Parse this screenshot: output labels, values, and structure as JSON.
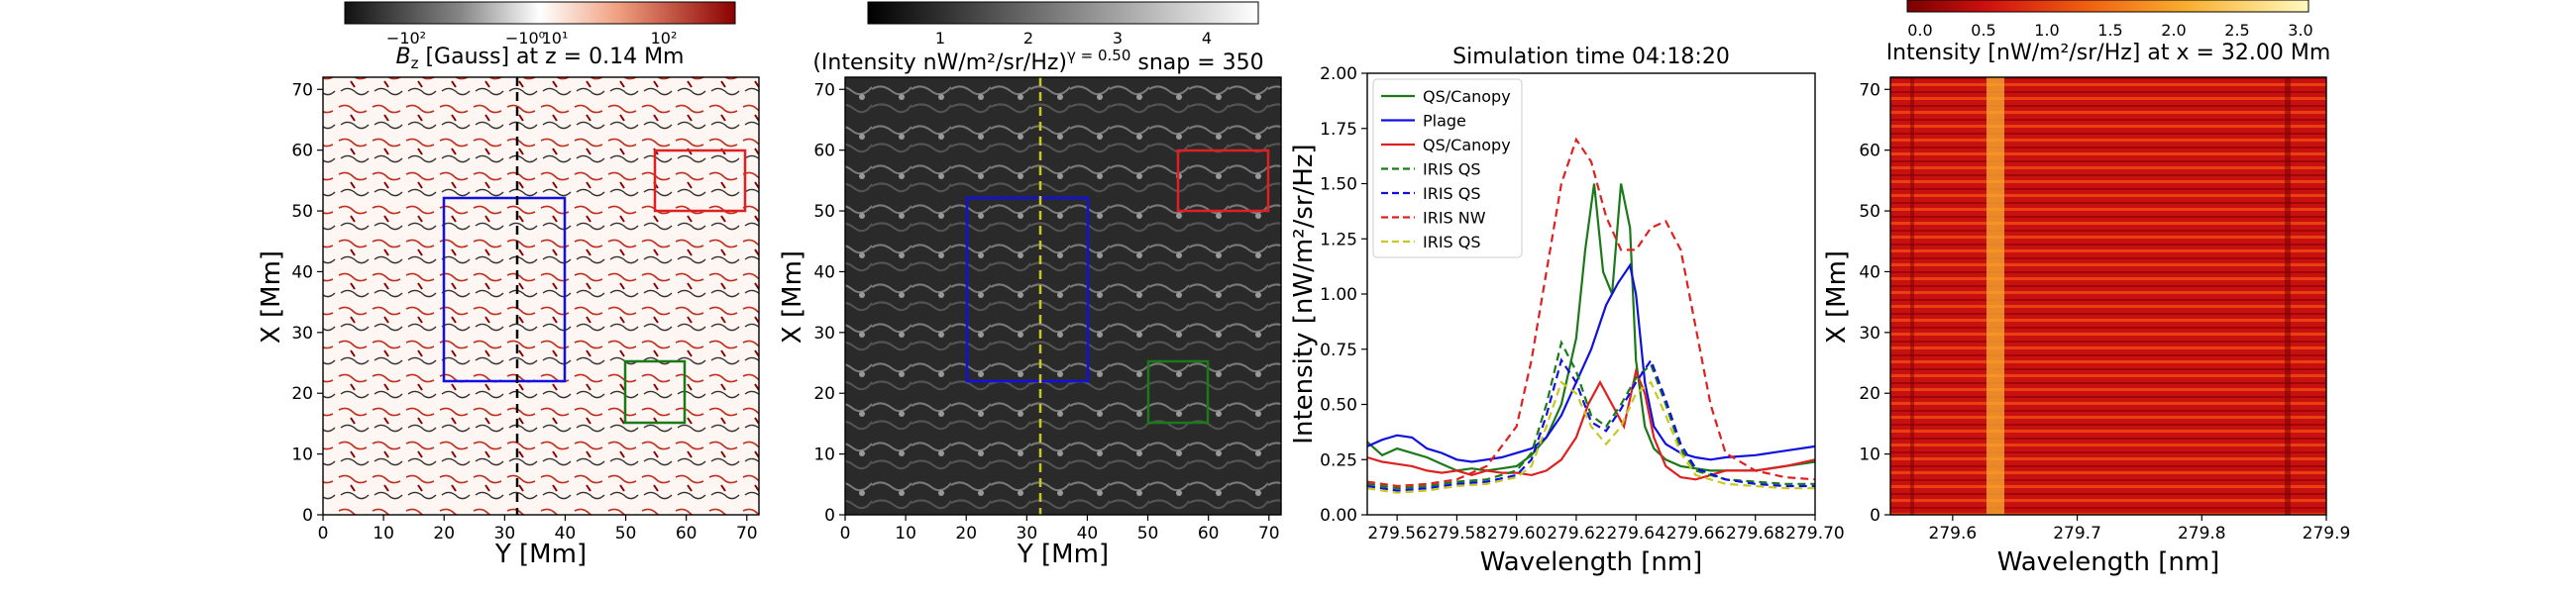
{
  "figure": {
    "panel1": {
      "title_html": "B_z [Gauss] at z = 0.14 Mm",
      "title_main": "[Gauss] at z = 0.14 Mm",
      "title_sym": "B",
      "title_sub": "z",
      "xlabel": "Y [Mm]",
      "ylabel": "X [Mm]",
      "xticks": [
        "0",
        "10",
        "20",
        "30",
        "40",
        "50",
        "60",
        "70"
      ],
      "yticks": [
        "0",
        "10",
        "20",
        "30",
        "40",
        "50",
        "60",
        "70"
      ],
      "colorbar_ticks": [
        "−10²",
        "−10⁰",
        "10¹",
        "10²"
      ],
      "colorbar_ticks_raw": [
        "-10^2",
        "-10^0 10^1",
        "10^2"
      ],
      "boxes": [
        {
          "name": "blue",
          "color": "#1010e0",
          "y0": 20,
          "y1": 40,
          "x0": 22,
          "x1": 52
        },
        {
          "name": "red",
          "color": "#e02020",
          "y0": 55,
          "y1": 70,
          "x0": 50,
          "x1": 60
        },
        {
          "name": "green",
          "color": "#1a7a1a",
          "y0": 50,
          "y1": 60,
          "x0": 15,
          "x1": 25
        }
      ],
      "cut_line_y": 32
    },
    "panel2": {
      "title": "(Intensity nW/m²/sr/Hz)",
      "title_gamma": "γ = 0.50",
      "title_snap": "snap = 350",
      "xlabel": "Y [Mm]",
      "ylabel": "X [Mm]",
      "xticks": [
        "0",
        "10",
        "20",
        "30",
        "40",
        "50",
        "60",
        "70"
      ],
      "yticks": [
        "0",
        "10",
        "20",
        "30",
        "40",
        "50",
        "60",
        "70"
      ],
      "colorbar_ticks": [
        "1",
        "2",
        "3",
        "4"
      ],
      "cut_line_y": 32
    },
    "panel4": {
      "title": "Intensity [nW/m²/sr/Hz] at x = 32.00 Mm",
      "xlabel": "Wavelength [nm]",
      "ylabel": "X [Mm]",
      "xticks": [
        "279.6",
        "279.7",
        "279.8",
        "279.9"
      ],
      "yticks": [
        "0",
        "10",
        "20",
        "30",
        "40",
        "50",
        "60",
        "70"
      ],
      "colorbar_ticks": [
        "0.0",
        "0.5",
        "1.0",
        "1.5",
        "2.0",
        "2.5",
        "3.0"
      ]
    }
  },
  "chart_data": {
    "type": "line",
    "title": "Simulation time 04:18:20",
    "xlabel": "Wavelength [nm]",
    "ylabel": "Intensity [nW/m²/sr/Hz]",
    "xlim": [
      279.55,
      279.7
    ],
    "ylim": [
      0.0,
      2.0
    ],
    "xtick_values": [
      279.56,
      279.58,
      279.6,
      279.62,
      279.64,
      279.66,
      279.68,
      279.7
    ],
    "xtick_labels": [
      "279.56",
      "279.58",
      "279.60",
      "279.62",
      "279.64",
      "279.66",
      "279.68",
      "279.70"
    ],
    "ytick_values": [
      0.0,
      0.25,
      0.5,
      0.75,
      1.0,
      1.25,
      1.5,
      1.75,
      2.0
    ],
    "ytick_labels": [
      "0.00",
      "0.25",
      "0.50",
      "0.75",
      "1.00",
      "1.25",
      "1.50",
      "1.75",
      "2.00"
    ],
    "legend_position": "top-left",
    "series": [
      {
        "name": "QS/Canopy",
        "color": "#1a7a1a",
        "dash": "solid",
        "x": [
          279.55,
          279.555,
          279.56,
          279.565,
          279.57,
          279.575,
          279.58,
          279.585,
          279.59,
          279.595,
          279.6,
          279.605,
          279.61,
          279.615,
          279.62,
          279.623,
          279.626,
          279.629,
          279.632,
          279.635,
          279.638,
          279.64,
          279.643,
          279.646,
          279.65,
          279.655,
          279.66,
          279.665,
          279.67,
          279.68,
          279.69,
          279.7
        ],
        "y": [
          0.33,
          0.27,
          0.3,
          0.28,
          0.26,
          0.23,
          0.2,
          0.21,
          0.2,
          0.21,
          0.22,
          0.27,
          0.35,
          0.5,
          0.8,
          1.2,
          1.5,
          1.1,
          1.0,
          1.5,
          1.3,
          0.7,
          0.4,
          0.3,
          0.25,
          0.22,
          0.21,
          0.2,
          0.2,
          0.2,
          0.22,
          0.24
        ]
      },
      {
        "name": "Plage",
        "color": "#1010e0",
        "dash": "solid",
        "x": [
          279.55,
          279.555,
          279.56,
          279.565,
          279.57,
          279.575,
          279.58,
          279.585,
          279.59,
          279.595,
          279.6,
          279.605,
          279.61,
          279.615,
          279.62,
          279.625,
          279.63,
          279.634,
          279.638,
          279.64,
          279.643,
          279.646,
          279.65,
          279.655,
          279.66,
          279.665,
          279.67,
          279.68,
          279.69,
          279.7
        ],
        "y": [
          0.31,
          0.34,
          0.36,
          0.35,
          0.3,
          0.28,
          0.25,
          0.24,
          0.25,
          0.26,
          0.28,
          0.3,
          0.35,
          0.45,
          0.6,
          0.75,
          0.95,
          1.05,
          1.13,
          1.0,
          0.6,
          0.4,
          0.32,
          0.28,
          0.26,
          0.25,
          0.26,
          0.27,
          0.29,
          0.31
        ]
      },
      {
        "name": "QS/Canopy",
        "color": "#e02020",
        "dash": "solid",
        "x": [
          279.55,
          279.555,
          279.56,
          279.565,
          279.57,
          279.575,
          279.58,
          279.585,
          279.59,
          279.595,
          279.6,
          279.605,
          279.61,
          279.615,
          279.62,
          279.624,
          279.628,
          279.632,
          279.636,
          279.64,
          279.643,
          279.646,
          279.65,
          279.655,
          279.66,
          279.665,
          279.67,
          279.68,
          279.69,
          279.7
        ],
        "y": [
          0.26,
          0.24,
          0.23,
          0.22,
          0.2,
          0.19,
          0.2,
          0.18,
          0.2,
          0.19,
          0.19,
          0.18,
          0.2,
          0.25,
          0.35,
          0.5,
          0.6,
          0.5,
          0.4,
          0.65,
          0.55,
          0.35,
          0.22,
          0.17,
          0.16,
          0.18,
          0.2,
          0.2,
          0.22,
          0.25
        ]
      },
      {
        "name": "IRIS QS",
        "color": "#1a7a1a",
        "dash": "dashed",
        "x": [
          279.55,
          279.56,
          279.57,
          279.58,
          279.59,
          279.6,
          279.605,
          279.61,
          279.615,
          279.62,
          279.625,
          279.63,
          279.635,
          279.64,
          279.645,
          279.65,
          279.655,
          279.66,
          279.67,
          279.68,
          279.69,
          279.7
        ],
        "y": [
          0.14,
          0.12,
          0.13,
          0.15,
          0.16,
          0.2,
          0.28,
          0.5,
          0.78,
          0.65,
          0.45,
          0.4,
          0.5,
          0.62,
          0.68,
          0.5,
          0.3,
          0.2,
          0.16,
          0.15,
          0.14,
          0.14
        ]
      },
      {
        "name": "IRIS QS",
        "color": "#1010e0",
        "dash": "dashed",
        "x": [
          279.55,
          279.56,
          279.57,
          279.58,
          279.59,
          279.6,
          279.605,
          279.61,
          279.615,
          279.62,
          279.625,
          279.63,
          279.635,
          279.64,
          279.645,
          279.65,
          279.655,
          279.66,
          279.67,
          279.68,
          279.69,
          279.7
        ],
        "y": [
          0.13,
          0.11,
          0.12,
          0.14,
          0.15,
          0.18,
          0.25,
          0.45,
          0.7,
          0.6,
          0.42,
          0.38,
          0.48,
          0.6,
          0.7,
          0.52,
          0.32,
          0.21,
          0.16,
          0.14,
          0.13,
          0.13
        ]
      },
      {
        "name": "IRIS NW",
        "color": "#e02020",
        "dash": "dashed",
        "x": [
          279.55,
          279.56,
          279.57,
          279.58,
          279.59,
          279.6,
          279.605,
          279.61,
          279.615,
          279.62,
          279.625,
          279.63,
          279.635,
          279.64,
          279.645,
          279.65,
          279.655,
          279.66,
          279.665,
          279.67,
          279.68,
          279.69,
          279.7
        ],
        "y": [
          0.15,
          0.13,
          0.14,
          0.16,
          0.22,
          0.4,
          0.7,
          1.1,
          1.5,
          1.7,
          1.6,
          1.35,
          1.2,
          1.2,
          1.3,
          1.33,
          1.2,
          0.85,
          0.5,
          0.28,
          0.2,
          0.17,
          0.16
        ]
      },
      {
        "name": "IRIS QS",
        "color": "#c8c820",
        "dash": "dashed",
        "x": [
          279.55,
          279.56,
          279.57,
          279.58,
          279.59,
          279.6,
          279.605,
          279.61,
          279.615,
          279.62,
          279.625,
          279.63,
          279.635,
          279.64,
          279.645,
          279.65,
          279.655,
          279.66,
          279.67,
          279.68,
          279.69,
          279.7
        ],
        "y": [
          0.12,
          0.1,
          0.11,
          0.13,
          0.14,
          0.17,
          0.22,
          0.4,
          0.6,
          0.55,
          0.4,
          0.32,
          0.4,
          0.55,
          0.6,
          0.45,
          0.28,
          0.18,
          0.14,
          0.13,
          0.12,
          0.12
        ]
      }
    ]
  }
}
